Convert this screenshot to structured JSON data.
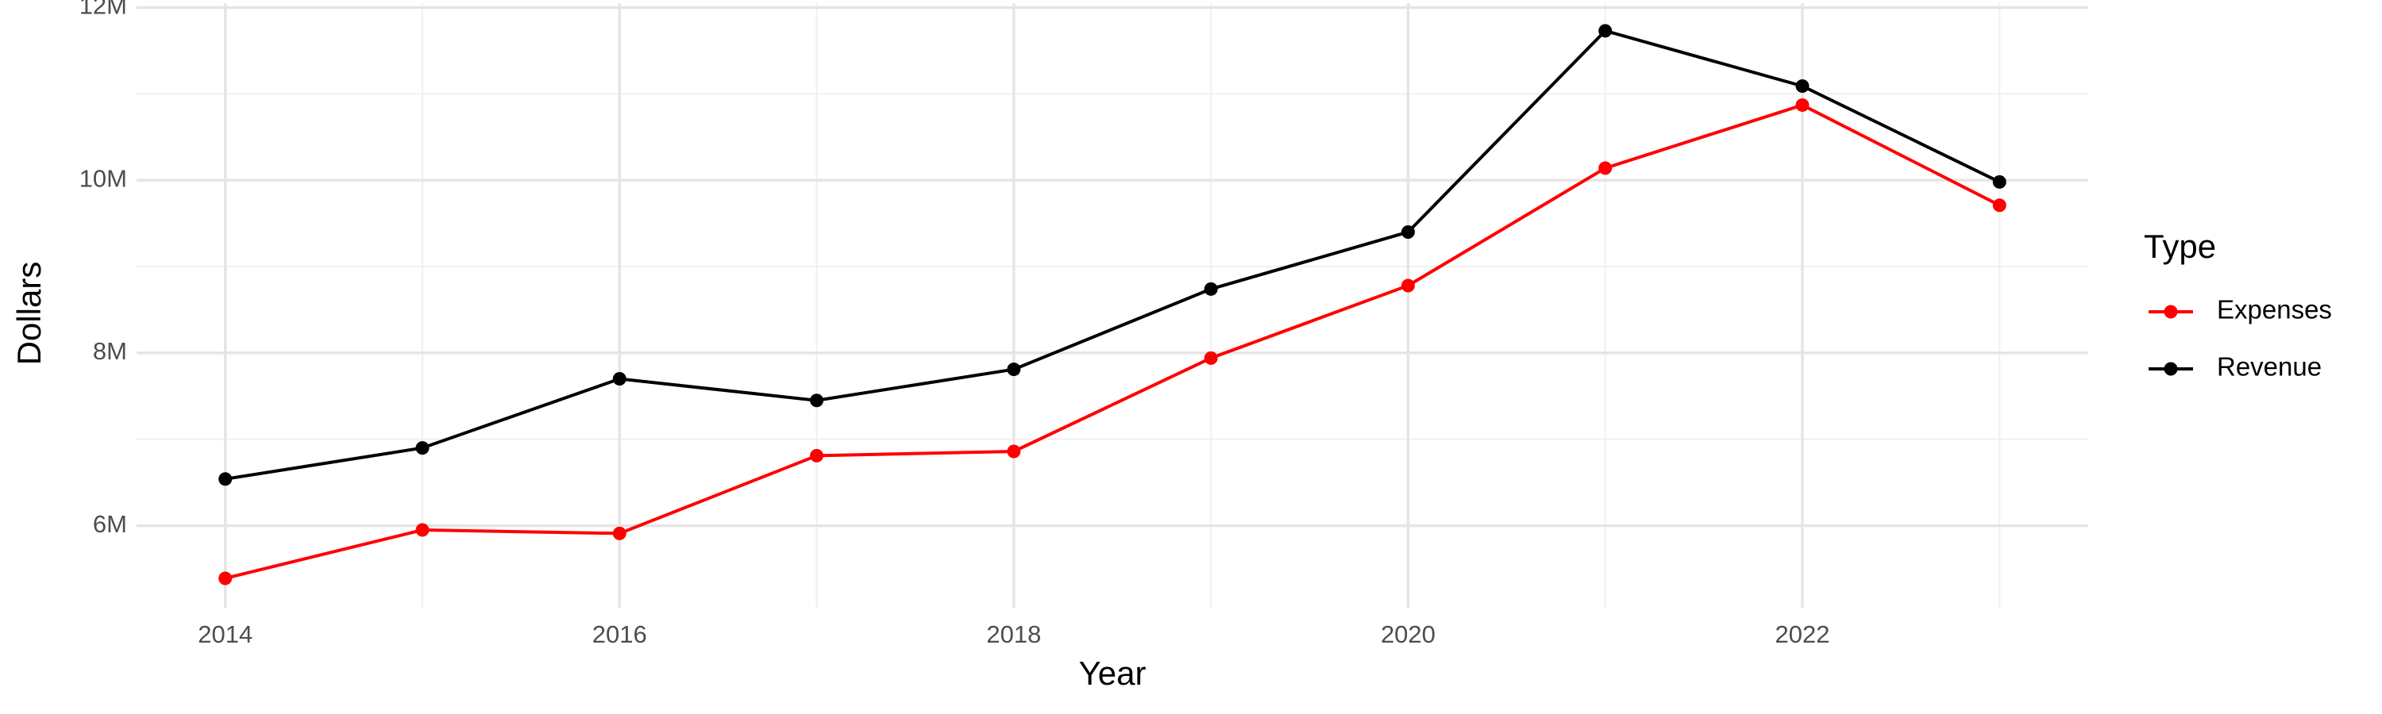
{
  "chart_data": {
    "type": "line",
    "x_label": "Year",
    "y_label": "Dollars",
    "legend_title": "Type",
    "x": [
      2014,
      2015,
      2016,
      2017,
      2018,
      2019,
      2020,
      2021,
      2022,
      2023
    ],
    "series": [
      {
        "name": "Expenses",
        "color": "#ff0000",
        "values": [
          5390000,
          5950000,
          5910000,
          6810000,
          6860000,
          7940000,
          8780000,
          10140000,
          10870000,
          9710000
        ]
      },
      {
        "name": "Revenue",
        "color": "#000000",
        "values": [
          6540000,
          6900000,
          7700000,
          7450000,
          7810000,
          8740000,
          9400000,
          11730000,
          11090000,
          9980000
        ]
      }
    ],
    "xlim": [
      2013.55,
      2023.45
    ],
    "xticks": [
      2014,
      2016,
      2018,
      2020,
      2022
    ],
    "ylim": [
      5050000,
      12050000
    ],
    "yticks": [
      {
        "value": 6000000,
        "label": "6M"
      },
      {
        "value": 8000000,
        "label": "8M"
      },
      {
        "value": 10000000,
        "label": "10M"
      },
      {
        "value": 12000000,
        "label": "12M"
      }
    ],
    "grid": true,
    "minor_grid": true,
    "legend_position": "right"
  }
}
